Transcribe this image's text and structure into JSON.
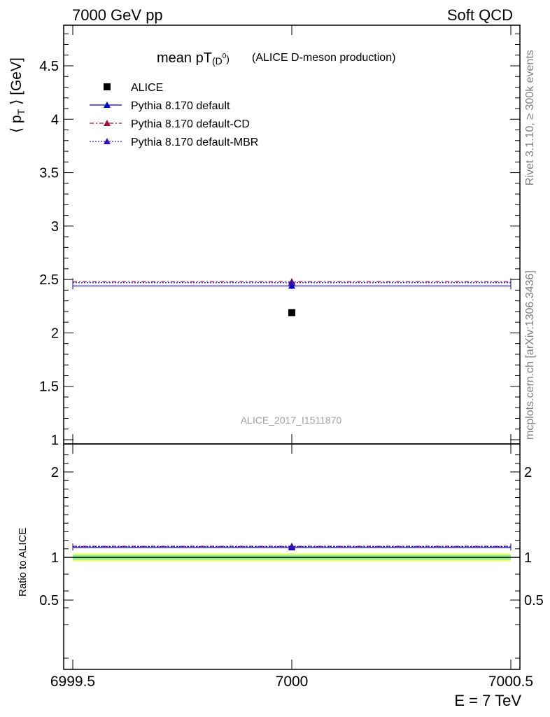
{
  "header": {
    "left": "7000 GeV pp",
    "right": "Soft QCD"
  },
  "side_labels": {
    "rivet": "Rivet 3.1.10, ≥ 300k events",
    "mcplots": "mcplots.cern.ch [arXiv:1306.3436]"
  },
  "chart_data": {
    "type": "scatter",
    "title_main": "mean pT",
    "title_sub": "(D",
    "title_sup": "0",
    "title_close": ")",
    "title_rest": "(ALICE D-meson production)",
    "analysis_id": "ALICE_2017_I1511870",
    "ylabel": "⟨ p",
    "ylabel_sub": "T",
    "ylabel_rest": " ⟩ [GeV]",
    "xlabel": "E = 7 TeV",
    "ratio_ylabel": "Ratio to ALICE",
    "xlim": [
      6999.5,
      7000.5
    ],
    "ylim": [
      0.95,
      4.9
    ],
    "ratio_ylim": [
      0.35,
      2.3
    ],
    "x_ticks": [
      6999.5,
      7000,
      7000.5
    ],
    "x_tick_labels": [
      "6999.5",
      "7000",
      "7000.5"
    ],
    "y_ticks": [
      1,
      1.5,
      2,
      2.5,
      3,
      3.5,
      4,
      4.5
    ],
    "y_tick_labels": [
      "1",
      "1.5",
      "2",
      "2.5",
      "3",
      "3.5",
      "4",
      "4.5"
    ],
    "ratio_ticks": [
      0.5,
      1,
      2
    ],
    "ratio_tick_labels": [
      "0.5",
      "1",
      "2"
    ],
    "series": [
      {
        "name": "ALICE",
        "marker": "square",
        "color": "#000000",
        "x": [
          7000
        ],
        "y": [
          2.19
        ],
        "err": [
          0.0
        ],
        "line": "none"
      },
      {
        "name": "Pythia 8.170 default",
        "marker": "triangle",
        "color": "#0000cc",
        "x": [
          7000
        ],
        "y": [
          2.44
        ],
        "err": [
          0.03
        ],
        "line": "solid"
      },
      {
        "name": "Pythia 8.170 default-CD",
        "marker": "triangle",
        "color": "#a0103c",
        "x": [
          7000
        ],
        "y": [
          2.48
        ],
        "err": [
          0.03
        ],
        "line": "dashdot"
      },
      {
        "name": "Pythia 8.170 default-MBR",
        "marker": "triangle",
        "color": "#3010b0",
        "x": [
          7000
        ],
        "y": [
          2.47
        ],
        "err": [
          0.03
        ],
        "line": "dotted"
      }
    ],
    "ratio": {
      "band_inner": [
        0.97,
        1.03
      ],
      "band_outer": [
        0.95,
        1.05
      ],
      "band_inner_color": "#90f090",
      "band_outer_color": "#f0ff80",
      "series_values": [
        1.0,
        1.115,
        1.13,
        1.127
      ]
    }
  }
}
